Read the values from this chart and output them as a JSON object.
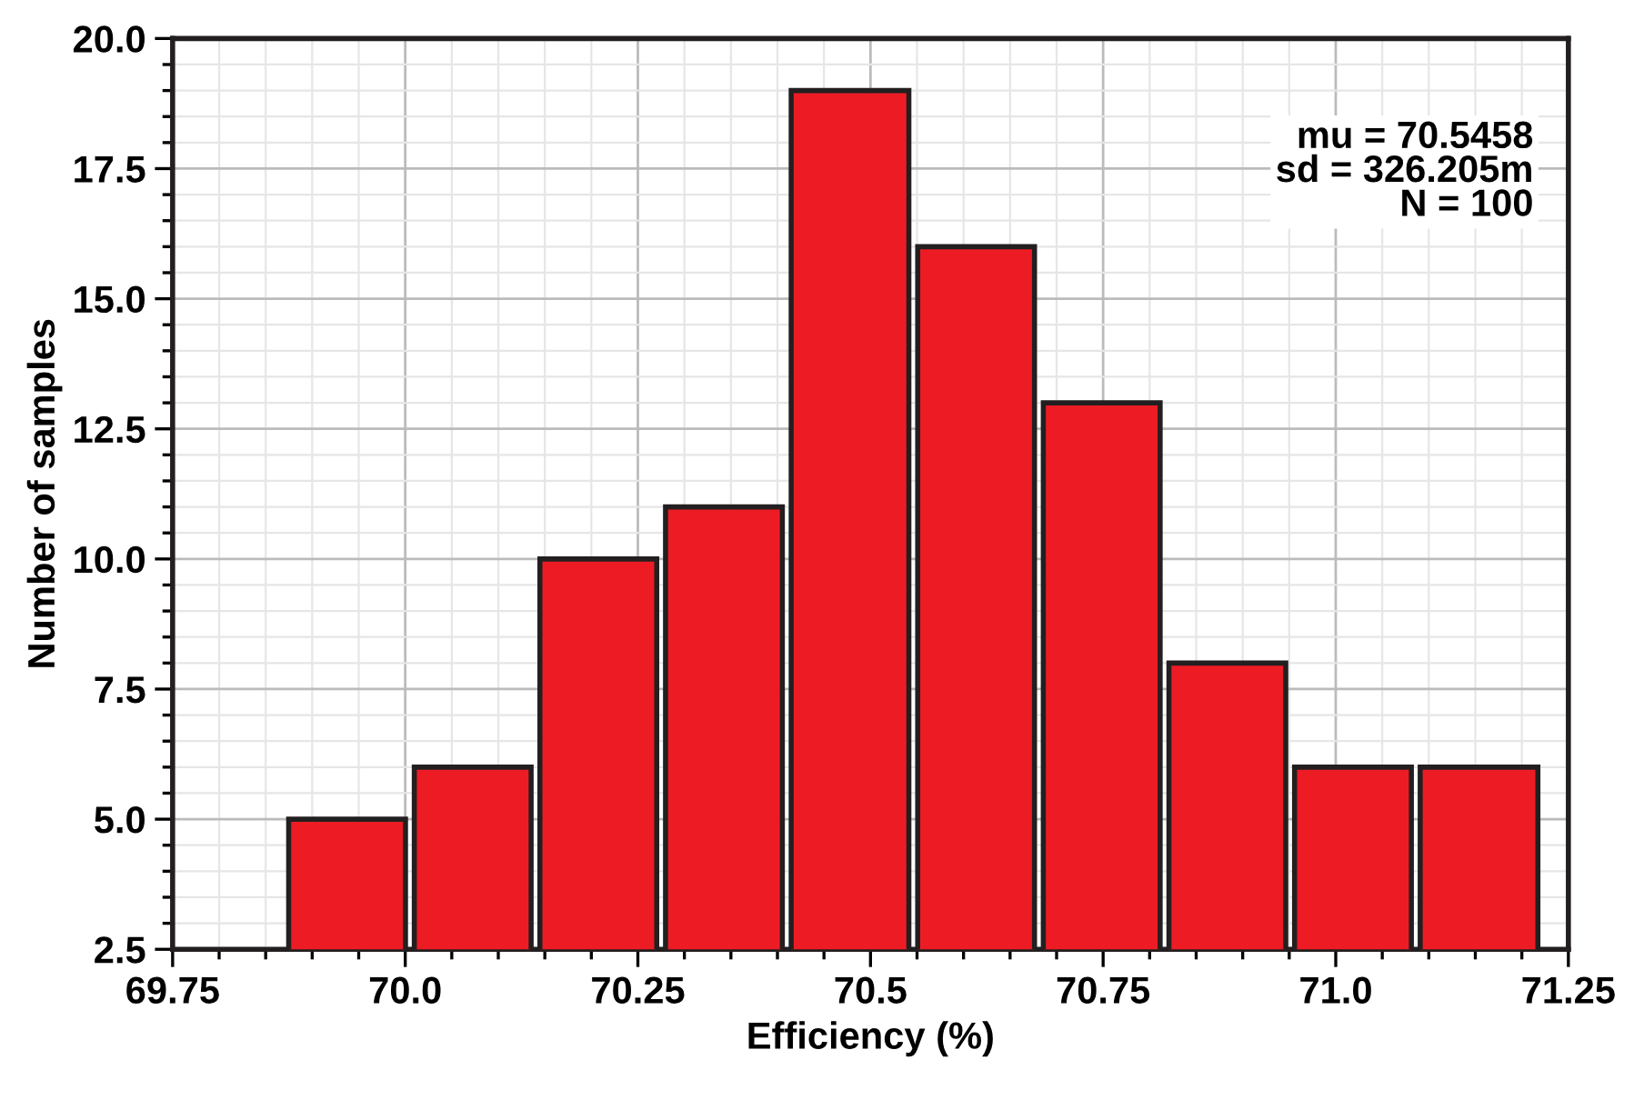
{
  "chart_data": {
    "type": "histogram",
    "xlabel": "Efficiency (%)",
    "ylabel": "Number of samples",
    "bins": [
      69.87,
      70.005,
      70.14,
      70.275,
      70.41,
      70.546,
      70.681,
      70.816,
      70.951,
      71.086,
      71.222
    ],
    "values": [
      5,
      6,
      10,
      11,
      19,
      16,
      13,
      8,
      6,
      6
    ],
    "color": "#ed1c24",
    "xlim": [
      69.75,
      71.25
    ],
    "xticks": [
      69.75,
      {
        "value": 70,
        "label": "70.0"
      },
      70.25,
      70.5,
      70.75,
      {
        "value": 71,
        "label": "71.0"
      },
      71.25
    ],
    "ylim": [
      2.5,
      20
    ],
    "yticks": [
      {
        "value": 2.5,
        "label": "2.5"
      },
      {
        "value": 5,
        "label": "5.0"
      },
      {
        "value": 7.5,
        "label": "7.5"
      },
      {
        "value": 10,
        "label": "10.0"
      },
      {
        "value": 12.5,
        "label": "12.5"
      },
      {
        "value": 15,
        "label": "15.0"
      },
      {
        "value": 17.5,
        "label": "17.5"
      },
      {
        "value": 20,
        "label": "20.0"
      }
    ],
    "grid": true,
    "annotations": [
      "mu = 70.5458",
      "sd = 326.205m",
      "N = 100"
    ]
  }
}
